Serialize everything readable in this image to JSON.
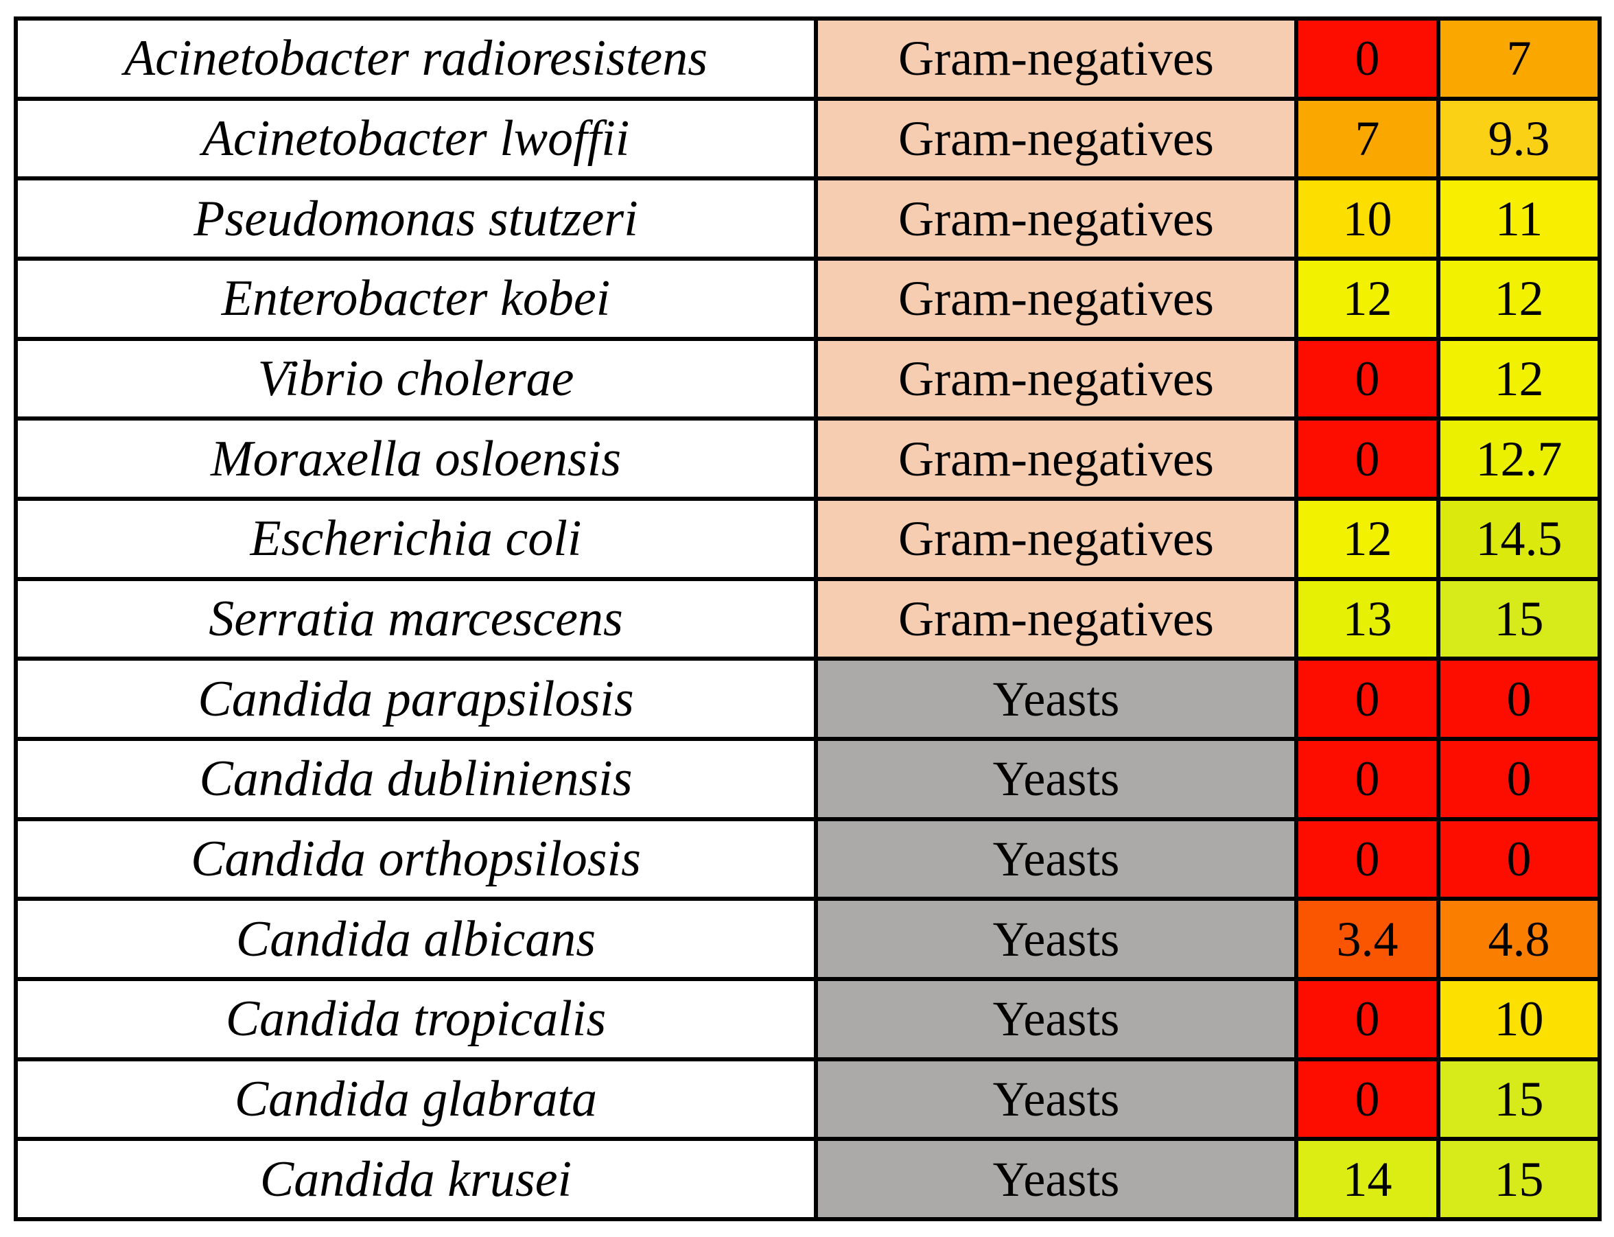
{
  "table": {
    "description": "Species heat-map table",
    "columns": [
      "species",
      "group",
      "value1",
      "value2"
    ],
    "group_colors": {
      "Gram-negatives": "#F6CDB0",
      "Yeasts": "#ACA9A9"
    },
    "species_cell_color": "#FFFFFF",
    "border_color": "#000000",
    "text_color": "#000000",
    "rows": [
      {
        "species": "Acinetobacter radioresistens",
        "group": "Gram-negatives",
        "v1": "0",
        "v2": "7",
        "c1": "#FC0D00",
        "c2": "#FAA700"
      },
      {
        "species": "Acinetobacter lwoffii",
        "group": "Gram-negatives",
        "v1": "7",
        "v2": "9.3",
        "c1": "#FAA700",
        "c2": "#FBD116"
      },
      {
        "species": "Pseudomonas stutzeri",
        "group": "Gram-negatives",
        "v1": "10",
        "v2": "11",
        "c1": "#FCDE00",
        "c2": "#F8EE00"
      },
      {
        "species": "Enterobacter kobei",
        "group": "Gram-negatives",
        "v1": "12",
        "v2": "12",
        "c1": "#F1F100",
        "c2": "#F1F100"
      },
      {
        "species": "Vibrio cholerae",
        "group": "Gram-negatives",
        "v1": "0",
        "v2": "12",
        "c1": "#FC0D00",
        "c2": "#F1F100"
      },
      {
        "species": "Moraxella osloensis",
        "group": "Gram-negatives",
        "v1": "0",
        "v2": "12.7",
        "c1": "#FC0D00",
        "c2": "#EAF000"
      },
      {
        "species": "Escherichia coli",
        "group": "Gram-negatives",
        "v1": "12",
        "v2": "14.5",
        "c1": "#F1F100",
        "c2": "#DBEA0C"
      },
      {
        "species": "Serratia marcescens",
        "group": "Gram-negatives",
        "v1": "13",
        "v2": "15",
        "c1": "#E6F005",
        "c2": "#D7EB1A"
      },
      {
        "species": "Candida parapsilosis",
        "group": "Yeasts",
        "v1": "0",
        "v2": "0",
        "c1": "#FC0D00",
        "c2": "#FC0D00"
      },
      {
        "species": "Candida dubliniensis",
        "group": "Yeasts",
        "v1": "0",
        "v2": "0",
        "c1": "#FC0D00",
        "c2": "#FC0D00"
      },
      {
        "species": "Candida orthopsilosis",
        "group": "Yeasts",
        "v1": "0",
        "v2": "0",
        "c1": "#FC0D00",
        "c2": "#FC0D00"
      },
      {
        "species": "Candida albicans",
        "group": "Yeasts",
        "v1": "3.4",
        "v2": "4.8",
        "c1": "#FA5500",
        "c2": "#FA7F00"
      },
      {
        "species": "Candida tropicalis",
        "group": "Yeasts",
        "v1": "0",
        "v2": "10",
        "c1": "#FC0D00",
        "c2": "#FCE000"
      },
      {
        "species": "Candida glabrata",
        "group": "Yeasts",
        "v1": "0",
        "v2": "15",
        "c1": "#FC0D00",
        "c2": "#D7EB1A"
      },
      {
        "species": "Candida krusei",
        "group": "Yeasts",
        "v1": "14",
        "v2": "15",
        "c1": "#DBED12",
        "c2": "#D7EB1A"
      }
    ]
  }
}
